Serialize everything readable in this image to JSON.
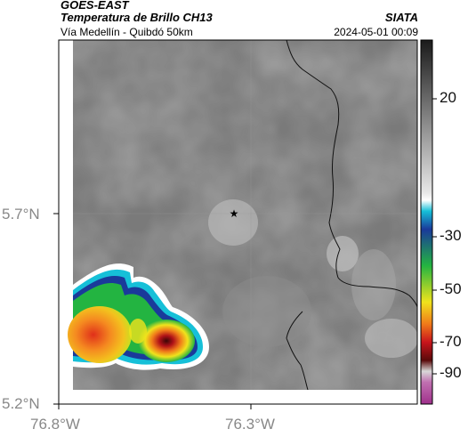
{
  "header": {
    "satellite": "GOES-EAST",
    "product": "Temperatura de Brillo CH13",
    "region": "Vía Medellín - Quibdó 50km",
    "brand": "SIATA",
    "timestamp": "2024-05-01 00:09"
  },
  "axes": {
    "lat_ticks": [
      "5.7°N",
      "5.2°N"
    ],
    "lon_ticks": [
      "76.8°W",
      "76.3°W"
    ]
  },
  "colorbar": {
    "labels": [
      "20",
      "-30",
      "-50",
      "-70",
      "-90"
    ],
    "colors": {
      "warm_gray": "#6f6f6f",
      "light_gray": "#e6e6e6",
      "cyan": "#16c0d8",
      "blue": "#1a3a9a",
      "green": "#23b441",
      "yellow": "#f0e31c",
      "orange": "#f07a1a",
      "red": "#c8141c",
      "dark_red": "#5a0a0a",
      "magenta": "#a0308c"
    }
  },
  "map": {
    "marker": "star-marker",
    "storm_cell": "convective-cloud-cell"
  }
}
